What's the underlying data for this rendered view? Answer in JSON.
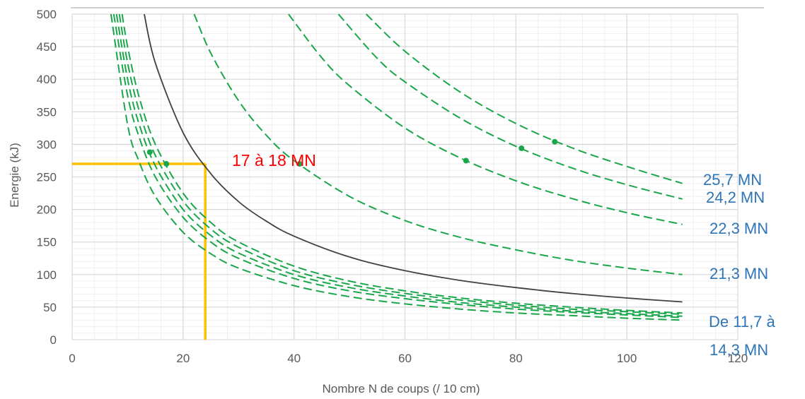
{
  "chart_data": {
    "type": "line",
    "title": "",
    "xlabel": "Nombre N de coups (/ 10 cm)",
    "ylabel": "Energie (kJ)",
    "xlim": [
      0,
      120
    ],
    "ylim": [
      0,
      500
    ],
    "x_ticks": [
      0,
      20,
      40,
      60,
      80,
      100,
      120
    ],
    "y_ticks": [
      0,
      50,
      100,
      150,
      200,
      250,
      300,
      350,
      400,
      450,
      500
    ],
    "grid": {
      "major": true,
      "minor": true
    },
    "colors": {
      "dashed_series": "#1aa64a",
      "reference_curve": "#404040",
      "highlight": "#ffc000",
      "red_annotation": "#ff0000",
      "blue_annotation": "#2e75b6",
      "grid_major": "#d9d9d9",
      "grid_minor": "#efefef"
    },
    "series": [
      {
        "style": "solid",
        "color": "#404040",
        "points": [
          [
            13,
            500
          ],
          [
            15,
            425
          ],
          [
            20,
            318
          ],
          [
            25,
            255
          ],
          [
            30,
            212
          ],
          [
            35,
            182
          ],
          [
            40,
            159
          ],
          [
            50,
            127
          ],
          [
            60,
            106
          ],
          [
            70,
            91
          ],
          [
            80,
            80
          ],
          [
            90,
            71
          ],
          [
            100,
            64
          ],
          [
            110,
            58
          ]
        ]
      },
      {
        "style": "dashed",
        "color": "#1aa64a",
        "points": [
          [
            9,
            500
          ],
          [
            10,
            450
          ],
          [
            12,
            375
          ],
          [
            15,
            300
          ],
          [
            20,
            225
          ],
          [
            25,
            180
          ],
          [
            30,
            150
          ],
          [
            40,
            113
          ],
          [
            50,
            90
          ],
          [
            60,
            75
          ],
          [
            70,
            64
          ],
          [
            80,
            56
          ],
          [
            90,
            50
          ],
          [
            100,
            45
          ],
          [
            110,
            41
          ]
        ]
      },
      {
        "style": "dashed",
        "color": "#1aa64a",
        "points": [
          [
            8.5,
            500
          ],
          [
            10,
            425
          ],
          [
            12,
            354
          ],
          [
            15,
            283
          ],
          [
            20,
            213
          ],
          [
            25,
            170
          ],
          [
            30,
            142
          ],
          [
            40,
            106
          ],
          [
            50,
            85
          ],
          [
            60,
            71
          ],
          [
            70,
            61
          ],
          [
            80,
            53
          ],
          [
            90,
            47
          ],
          [
            100,
            43
          ],
          [
            110,
            39
          ]
        ]
      },
      {
        "style": "dashed",
        "color": "#1aa64a",
        "points": [
          [
            8,
            500
          ],
          [
            10,
            400
          ],
          [
            12,
            333
          ],
          [
            15,
            267
          ],
          [
            20,
            200
          ],
          [
            25,
            160
          ],
          [
            30,
            133
          ],
          [
            40,
            100
          ],
          [
            50,
            80
          ],
          [
            60,
            67
          ],
          [
            70,
            57
          ],
          [
            80,
            50
          ],
          [
            90,
            44
          ],
          [
            100,
            40
          ],
          [
            110,
            36
          ]
        ]
      },
      {
        "style": "dashed",
        "color": "#1aa64a",
        "points": [
          [
            7.5,
            500
          ],
          [
            10,
            375
          ],
          [
            12,
            313
          ],
          [
            15,
            250
          ],
          [
            20,
            188
          ],
          [
            25,
            150
          ],
          [
            30,
            125
          ],
          [
            40,
            94
          ],
          [
            50,
            75
          ],
          [
            60,
            63
          ],
          [
            70,
            54
          ],
          [
            80,
            47
          ],
          [
            90,
            42
          ],
          [
            100,
            38
          ],
          [
            110,
            34
          ]
        ]
      },
      {
        "style": "dashed",
        "color": "#1aa64a",
        "points": [
          [
            7,
            500
          ],
          [
            10,
            330
          ],
          [
            12,
            275
          ],
          [
            15,
            220
          ],
          [
            20,
            165
          ],
          [
            25,
            132
          ],
          [
            30,
            110
          ],
          [
            40,
            83
          ],
          [
            50,
            66
          ],
          [
            60,
            55
          ],
          [
            70,
            47
          ],
          [
            80,
            41
          ],
          [
            90,
            37
          ],
          [
            100,
            33
          ],
          [
            110,
            30
          ]
        ]
      },
      {
        "style": "dashed",
        "color": "#1aa64a",
        "points": [
          [
            22,
            500
          ],
          [
            25,
            440
          ],
          [
            30,
            367
          ],
          [
            35,
            314
          ],
          [
            40,
            275
          ],
          [
            50,
            220
          ],
          [
            60,
            183
          ],
          [
            70,
            157
          ],
          [
            80,
            138
          ],
          [
            90,
            122
          ],
          [
            100,
            110
          ],
          [
            110,
            100
          ]
        ]
      },
      {
        "style": "dashed",
        "color": "#1aa64a",
        "points": [
          [
            39,
            500
          ],
          [
            45,
            433
          ],
          [
            50,
            390
          ],
          [
            60,
            325
          ],
          [
            70,
            279
          ],
          [
            80,
            244
          ],
          [
            90,
            217
          ],
          [
            100,
            195
          ],
          [
            110,
            177
          ]
        ]
      },
      {
        "style": "dashed",
        "color": "#1aa64a",
        "points": [
          [
            48,
            500
          ],
          [
            55,
            432
          ],
          [
            60,
            396
          ],
          [
            70,
            340
          ],
          [
            80,
            297
          ],
          [
            90,
            264
          ],
          [
            100,
            238
          ],
          [
            110,
            216
          ]
        ]
      },
      {
        "style": "dashed",
        "color": "#1aa64a",
        "points": [
          [
            53,
            500
          ],
          [
            60,
            443
          ],
          [
            70,
            380
          ],
          [
            80,
            332
          ],
          [
            90,
            295
          ],
          [
            100,
            266
          ],
          [
            110,
            240
          ]
        ]
      }
    ],
    "markers": [
      [
        14,
        288
      ],
      [
        17,
        270
      ],
      [
        41,
        270
      ],
      [
        71,
        275
      ],
      [
        81,
        294
      ],
      [
        87,
        304
      ]
    ],
    "guide_lines": {
      "x": 24,
      "y": 270
    },
    "annotations": {
      "red": "17 à 18 MN",
      "blue": [
        "25,7 MN",
        "24,2 MN",
        "22,3 MN",
        "21,3 MN",
        "De 11,7 à",
        "14,3 MN"
      ]
    }
  }
}
